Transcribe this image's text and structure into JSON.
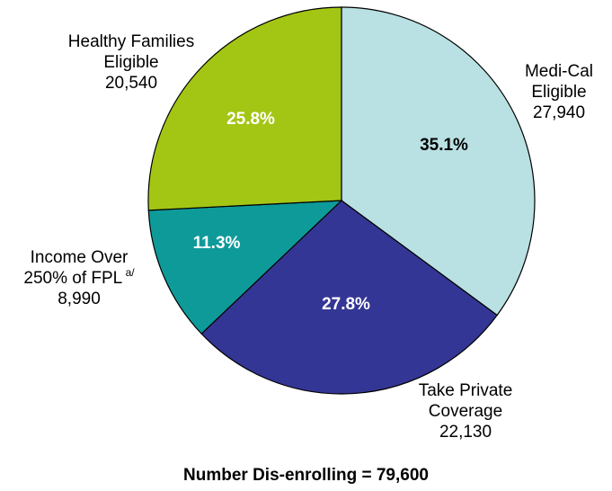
{
  "chart_data": {
    "type": "pie",
    "caption": "Number Dis-enrolling = 79,600",
    "slices": [
      {
        "label_lines": [
          "Medi-Cal",
          "Eligible"
        ],
        "value": 27940,
        "value_text": "27,940",
        "percent_text": "35.1%",
        "color": "#b9e0e2",
        "percent_color": "#000000"
      },
      {
        "label_lines": [
          "Take Private",
          "Coverage"
        ],
        "value": 22130,
        "value_text": "22,130",
        "percent_text": "27.8%",
        "color": "#343695",
        "percent_color": "#ffffff"
      },
      {
        "label_lines": [
          "Income Over",
          "250% of FPL"
        ],
        "label_sup": "a/",
        "value": 8990,
        "value_text": "8,990",
        "percent_text": "11.3%",
        "color": "#0f9a9a",
        "percent_color": "#ffffff"
      },
      {
        "label_lines": [
          "Healthy Families",
          "Eligible"
        ],
        "value": 20540,
        "value_text": "20,540",
        "percent_text": "25.8%",
        "color": "#a3c614",
        "percent_color": "#ffffff"
      }
    ]
  }
}
